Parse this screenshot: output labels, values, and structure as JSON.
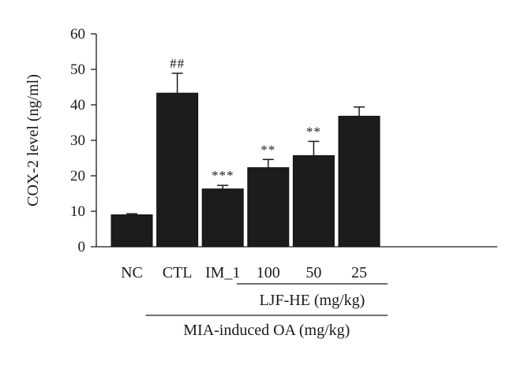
{
  "chart_data": {
    "type": "bar",
    "title": "",
    "xlabel": "",
    "ylabel": "COX-2 level (ng/ml)",
    "ylim": [
      0,
      60
    ],
    "yticks": [
      0,
      10,
      20,
      30,
      40,
      50,
      60
    ],
    "grid": false,
    "bar_color": "#1c1c1c",
    "categories": [
      "NC",
      "CTL",
      "IM_1",
      "100",
      "50",
      "25"
    ],
    "values": [
      9,
      43.3,
      16.3,
      22.3,
      25.7,
      36.8
    ],
    "errors": [
      0.3,
      5.6,
      1.0,
      2.3,
      4.0,
      2.6
    ],
    "significance": [
      "",
      "##",
      "***",
      "**",
      "**",
      ""
    ],
    "groups": [
      {
        "label": "LJF-HE (mg/kg)",
        "from": 3,
        "to": 5
      },
      {
        "label": "MIA-induced OA (mg/kg)",
        "from": 1,
        "to": 5
      }
    ]
  }
}
